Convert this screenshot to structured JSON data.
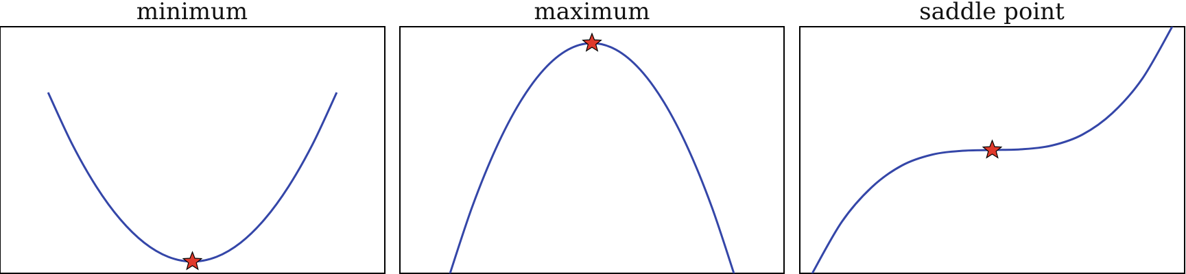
{
  "colors": {
    "curve": "#3446a8",
    "marker_fill": "#e03a2c",
    "marker_stroke": "#000000",
    "frame": "#000000",
    "background": "#ffffff"
  },
  "chart_data": [
    {
      "type": "line",
      "title": "minimum",
      "xlabel": "",
      "ylabel": "",
      "grid": false,
      "xlim": [
        -1.6,
        1.6
      ],
      "ylim": [
        -0.1,
        2.0
      ],
      "series": [
        {
          "x": [
            -1.2,
            -1.0,
            -0.8,
            -0.6,
            -0.4,
            -0.2,
            0.0,
            0.2,
            0.4,
            0.6,
            0.8,
            1.0,
            1.2
          ],
          "y": [
            1.44,
            1.0,
            0.64,
            0.36,
            0.16,
            0.04,
            0.0,
            0.04,
            0.16,
            0.36,
            0.64,
            1.0,
            1.44
          ]
        }
      ],
      "marker": {
        "shape": "star",
        "x": 0.0,
        "y": 0.0
      }
    },
    {
      "type": "line",
      "title": "maximum",
      "xlabel": "",
      "ylabel": "",
      "grid": false,
      "xlim": [
        -1.6,
        1.6
      ],
      "ylim": [
        -1.4,
        0.1
      ],
      "series": [
        {
          "x": [
            -1.2,
            -1.0,
            -0.8,
            -0.6,
            -0.4,
            -0.2,
            0.0,
            0.2,
            0.4,
            0.6,
            0.8,
            1.0,
            1.2
          ],
          "y": [
            -1.44,
            -1.0,
            -0.64,
            -0.36,
            -0.16,
            -0.04,
            0.0,
            -0.04,
            -0.16,
            -0.36,
            -0.64,
            -1.0,
            -1.44
          ]
        }
      ],
      "marker": {
        "shape": "star",
        "x": 0.0,
        "y": 0.0
      }
    },
    {
      "type": "line",
      "title": "saddle point",
      "xlabel": "",
      "ylabel": "",
      "grid": false,
      "xlim": [
        -1.6,
        1.6
      ],
      "ylim": [
        -1.6,
        1.6
      ],
      "series": [
        {
          "x": [
            -1.5,
            -1.25,
            -1.0,
            -0.75,
            -0.5,
            -0.25,
            0.0,
            0.25,
            0.5,
            0.75,
            1.0,
            1.25,
            1.5
          ],
          "y": [
            -1.61,
            -0.93,
            -0.48,
            -0.2,
            -0.06,
            -0.01,
            0.0,
            0.01,
            0.06,
            0.2,
            0.48,
            0.93,
            1.61
          ]
        }
      ],
      "marker": {
        "shape": "star",
        "x": 0.0,
        "y": 0.0
      }
    }
  ]
}
